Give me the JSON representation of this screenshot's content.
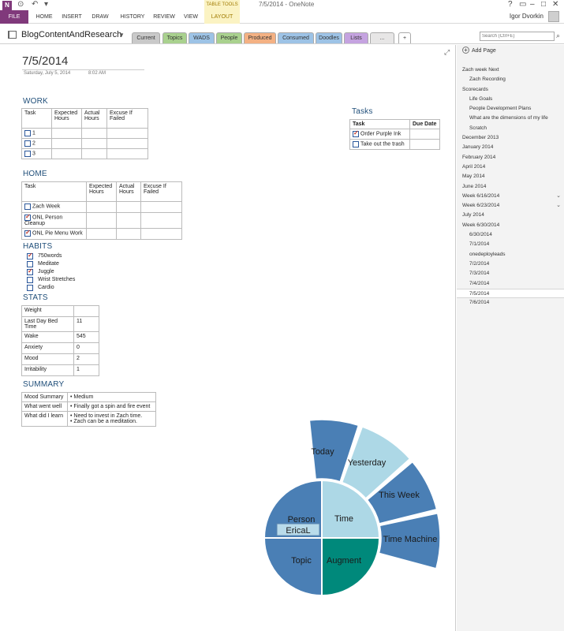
{
  "window": {
    "title": "7/5/2014 - OneNote",
    "table_tools_label": "TABLE TOOLS",
    "user_name": "Igor Dvorkin"
  },
  "ribbon": {
    "tabs": [
      "FILE",
      "HOME",
      "INSERT",
      "DRAW",
      "HISTORY",
      "REVIEW",
      "VIEW",
      "LAYOUT"
    ]
  },
  "notebook": {
    "name": "BlogContentAndResearch",
    "sections": [
      {
        "label": "Current",
        "color": "#c9c9c9"
      },
      {
        "label": "Topics",
        "color": "#a9d18e"
      },
      {
        "label": "WADS",
        "color": "#9dc3e6"
      },
      {
        "label": "People",
        "color": "#a9d18e"
      },
      {
        "label": "Produced",
        "color": "#f4b183"
      },
      {
        "label": "Consumed",
        "color": "#9dc3e6"
      },
      {
        "label": "Doodles",
        "color": "#9dc3e6"
      },
      {
        "label": "Lists",
        "color": "#c5a3e0"
      },
      {
        "label": "...",
        "color": "#e7e6e6"
      },
      {
        "label": "+",
        "color": "#ffffff"
      }
    ],
    "search_placeholder": "Search (Ctrl+E)"
  },
  "page": {
    "title": "7/5/2014",
    "date": "Saturday, July 5, 2014",
    "time": "8:02 AM",
    "work": {
      "heading": "WORK",
      "headers": [
        "Task",
        "Expected Hours",
        "Actual Hours",
        "Excuse If Failed"
      ],
      "rows": [
        "1",
        "2",
        "3"
      ]
    },
    "tasks": {
      "heading": "Tasks",
      "headers": [
        "Task",
        "Due Date"
      ],
      "rows": [
        {
          "label": "Order Purple Ink",
          "checked": true
        },
        {
          "label": "Take out the trash",
          "checked": false
        }
      ]
    },
    "home": {
      "heading": "HOME",
      "headers": [
        "Task",
        "Expected Hours",
        "Actual Hours",
        "Excuse If Failed"
      ],
      "rows": [
        {
          "label": "Zach Week",
          "checked": false
        },
        {
          "label": "ONL Person Cleanup",
          "checked": true
        },
        {
          "label": "ONL Pie Menu Work",
          "checked": true
        }
      ]
    },
    "habits": {
      "heading": "HABITS",
      "items": [
        {
          "label": "750words",
          "checked": true
        },
        {
          "label": "Meditate",
          "checked": false
        },
        {
          "label": "Juggle",
          "checked": true
        },
        {
          "label": "Wrist Stretches",
          "checked": false
        },
        {
          "label": "Cardio",
          "checked": false
        }
      ]
    },
    "stats": {
      "heading": "STATS",
      "rows": [
        {
          "label": "Weight",
          "value": ""
        },
        {
          "label": "Last Day Bed Time",
          "value": "11"
        },
        {
          "label": "Wake",
          "value": "545"
        },
        {
          "label": "Anxiety",
          "value": "0"
        },
        {
          "label": "Mood",
          "value": "2"
        },
        {
          "label": "Irritability",
          "value": "1"
        }
      ]
    },
    "summary": {
      "heading": "SUMMARY",
      "mood_label": "Mood Summary",
      "mood_value": "Medium",
      "went_well_label": "What went well",
      "went_well_value": "Finally got a spin and fire event",
      "learned_label": "What did I learn",
      "learned_values": [
        "Need to invest in Zach time.",
        "Zach can be a meditation."
      ]
    },
    "pie_menu": {
      "colors": {
        "dark_blue": "#4a7fb5",
        "light_blue": "#add8e6",
        "teal": "#00897b",
        "selected_label_bg": "#b9dbea"
      },
      "inner": {
        "person": "Person",
        "person_value": "EricaL",
        "time": "Time",
        "topic": "Topic",
        "augment": "Augment"
      },
      "outer": [
        "Today",
        "Yesterday",
        "This Week",
        "Time Machine"
      ]
    }
  },
  "page_panel": {
    "add_page": "Add Page",
    "pages": [
      {
        "label": "Zach week Next",
        "level": 0
      },
      {
        "label": "Zach Recording",
        "level": 1
      },
      {
        "label": "Scorecards",
        "level": 0
      },
      {
        "label": "Life Goals",
        "level": 1
      },
      {
        "label": "People Development Plans",
        "level": 1
      },
      {
        "label": "What are the dimensions of my life",
        "level": 1
      },
      {
        "label": "Scratch",
        "level": 1
      },
      {
        "label": "December 2013",
        "level": 0
      },
      {
        "label": "January 2014",
        "level": 0
      },
      {
        "label": "February 2014",
        "level": 0
      },
      {
        "label": "April 2014",
        "level": 0
      },
      {
        "label": "May 2014",
        "level": 0
      },
      {
        "label": "June 2014",
        "level": 0
      },
      {
        "label": "Week 6/16/2014",
        "level": 0
      },
      {
        "label": "Week 6/23/2014",
        "level": 0
      },
      {
        "label": "July 2014",
        "level": 0
      },
      {
        "label": "Week 6/30/2014",
        "level": 0
      },
      {
        "label": "6/30/2014",
        "level": 1
      },
      {
        "label": "7/1/2014",
        "level": 1
      },
      {
        "label": "onedeployleads",
        "level": 1
      },
      {
        "label": "7/2/2014",
        "level": 1
      },
      {
        "label": "7/3/2014",
        "level": 1
      },
      {
        "label": "7/4/2014",
        "level": 1
      },
      {
        "label": "7/5/2014",
        "level": 1
      },
      {
        "label": "7/6/2014",
        "level": 1
      }
    ]
  }
}
